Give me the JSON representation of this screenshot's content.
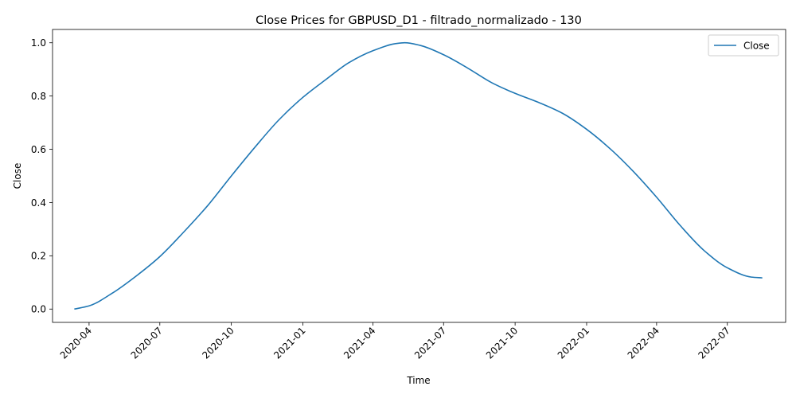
{
  "chart_data": {
    "type": "line",
    "title": "Close Prices for GBPUSD_D1 - filtrado_normalizado - 130",
    "xlabel": "Time",
    "ylabel": "Close",
    "x_ticks": [
      "2020-04",
      "2020-07",
      "2020-10",
      "2021-01",
      "2021-04",
      "2021-07",
      "2021-10",
      "2022-01",
      "2022-04",
      "2022-07"
    ],
    "y_ticks": [
      "0.0",
      "0.2",
      "0.4",
      "0.6",
      "0.8",
      "1.0"
    ],
    "xlim": [
      "2020-02-14",
      "2022-09-14"
    ],
    "ylim": [
      -0.05,
      1.05
    ],
    "grid": false,
    "legend_position": "top-right",
    "series": [
      {
        "name": "Close",
        "color": "#1f77b4",
        "points": [
          [
            "2020-03-13",
            0.0
          ],
          [
            "2020-04-01",
            0.012
          ],
          [
            "2020-05-01",
            0.06
          ],
          [
            "2020-06-01",
            0.125
          ],
          [
            "2020-07-01",
            0.197
          ],
          [
            "2020-08-01",
            0.29
          ],
          [
            "2020-09-01",
            0.39
          ],
          [
            "2020-10-01",
            0.5
          ],
          [
            "2020-11-01",
            0.61
          ],
          [
            "2020-12-01",
            0.71
          ],
          [
            "2021-01-01",
            0.795
          ],
          [
            "2021-02-01",
            0.865
          ],
          [
            "2021-03-01",
            0.925
          ],
          [
            "2021-04-01",
            0.97
          ],
          [
            "2021-05-01",
            0.997
          ],
          [
            "2021-05-12",
            1.0
          ],
          [
            "2021-06-01",
            0.99
          ],
          [
            "2021-07-01",
            0.955
          ],
          [
            "2021-08-01",
            0.905
          ],
          [
            "2021-09-01",
            0.85
          ],
          [
            "2021-10-01",
            0.81
          ],
          [
            "2021-11-01",
            0.775
          ],
          [
            "2021-12-01",
            0.735
          ],
          [
            "2022-01-01",
            0.675
          ],
          [
            "2022-02-01",
            0.6
          ],
          [
            "2022-03-01",
            0.52
          ],
          [
            "2022-04-01",
            0.42
          ],
          [
            "2022-05-01",
            0.315
          ],
          [
            "2022-06-01",
            0.22
          ],
          [
            "2022-07-01",
            0.155
          ],
          [
            "2022-08-01",
            0.12
          ],
          [
            "2022-08-15",
            0.117
          ]
        ]
      }
    ]
  }
}
